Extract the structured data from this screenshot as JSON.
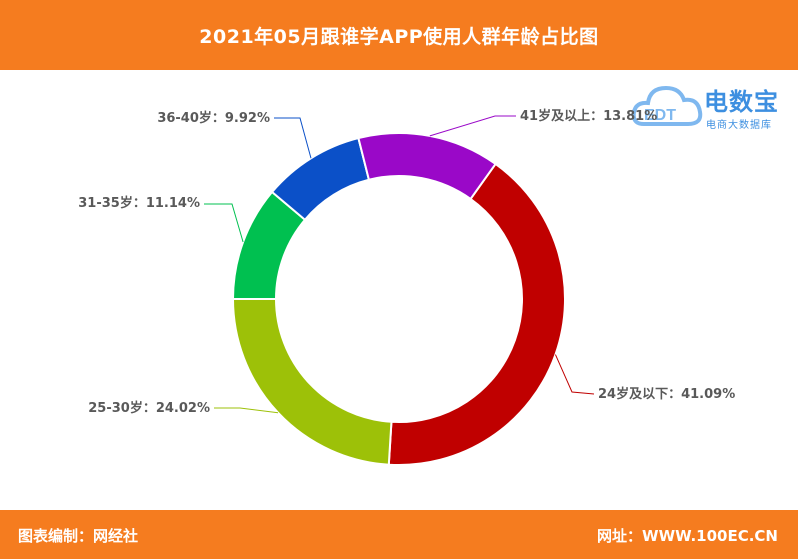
{
  "header": {
    "title": "2021年05月跟谁学APP使用人群年龄占比图"
  },
  "footer": {
    "left_text": "图表编制：网经社",
    "right_text": "网址：WWW.100EC.CN"
  },
  "watermark": {
    "brand": "电数宝",
    "sub": "电商大数据库",
    "mark": "EDT"
  },
  "chart_data": {
    "type": "pie",
    "style": "donut",
    "categories": [
      "24岁及以下",
      "25-30岁",
      "31-35岁",
      "36-40岁",
      "41岁及以上"
    ],
    "values": [
      41.09,
      24.02,
      11.14,
      9.92,
      13.81
    ],
    "labels": [
      "24岁及以下：41.09%",
      "25-30岁：24.02%",
      "31-35岁：11.14%",
      "36-40岁：9.92%",
      "41岁及以上：13.81%"
    ],
    "colors": [
      "#c00000",
      "#9dc108",
      "#00c050",
      "#0b50c8",
      "#9a08c8"
    ]
  }
}
